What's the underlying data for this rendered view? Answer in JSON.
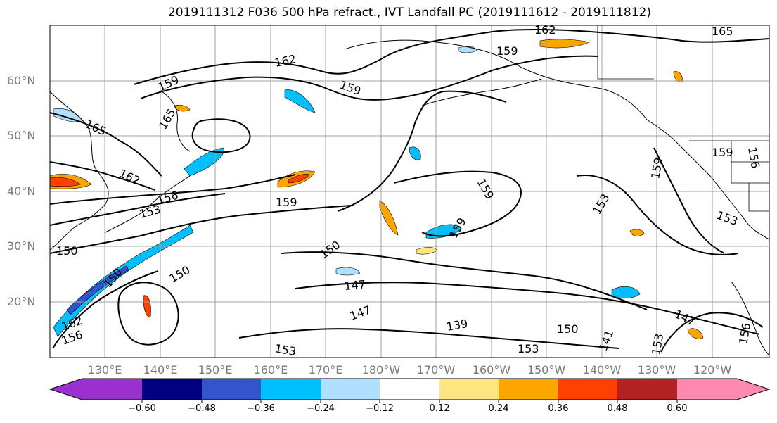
{
  "title": "2019111312 F036 500 hPa refract., IVT Landfall PC (2019111612 - 2019111812)",
  "latitude_labels": [
    "60°N",
    "50°N",
    "40°N",
    "30°N",
    "20°N"
  ],
  "longitude_labels": [
    "130°E",
    "140°E",
    "150°E",
    "160°E",
    "170°E",
    "180°W",
    "170°W",
    "160°W",
    "150°W",
    "140°W",
    "130°W",
    "120°W"
  ],
  "contour_labels": [
    "162",
    "165",
    "159",
    "162",
    "159",
    "159",
    "165",
    "165",
    "162",
    "156",
    "153",
    "159",
    "159",
    "159",
    "159",
    "156",
    "150",
    "150",
    "150",
    "147",
    "147",
    "139",
    "150",
    "153",
    "153",
    "153",
    "147",
    "153",
    "150",
    "162",
    "156",
    "159",
    "141",
    "156",
    "153"
  ],
  "colorbar": {
    "tick_labels": [
      "−0.60",
      "−0.48",
      "−0.36",
      "−0.24",
      "−0.12",
      "0.12",
      "0.24",
      "0.36",
      "0.48",
      "0.60"
    ],
    "colors": [
      "#9b30d0",
      "#000080",
      "#3355cc",
      "#00bfff",
      "#b0e0ff",
      "#ffffff",
      "#ffe680",
      "#ffa500",
      "#ff4000",
      "#b22222",
      "#ff88b0"
    ]
  },
  "field_colors": {
    "negative_light": "#b0e0ff",
    "negative_mid": "#00bfff",
    "negative_strong": "#3355cc",
    "positive_light": "#ffe680",
    "positive_mid": "#ffa500",
    "positive_strong": "#ff4000"
  }
}
